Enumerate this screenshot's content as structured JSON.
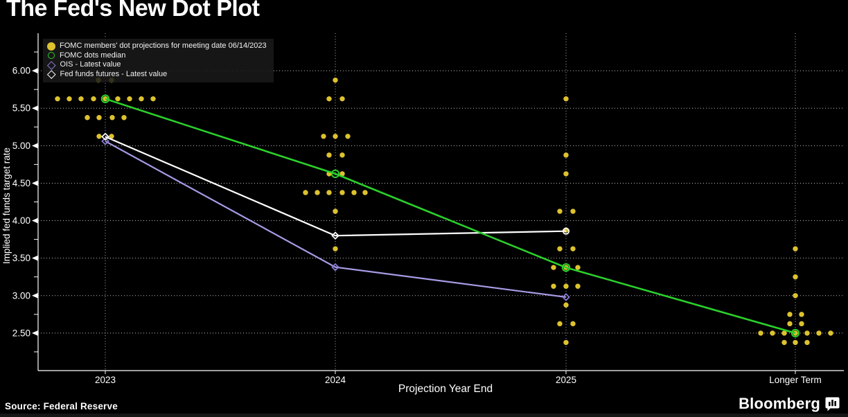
{
  "header": {
    "title": "The Fed's New Dot Plot"
  },
  "footer": {
    "source": "Source: Federal Reserve",
    "brand": "Bloomberg"
  },
  "colors": {
    "background": "#000000",
    "dot_yellow": "#ddc22f",
    "median_green": "#2bd02b",
    "ois_purple": "#a79ce6",
    "ois_diamond": "#8b7dd8",
    "futures_white": "#ffffff",
    "grid": "#e6e6e6",
    "axis": "#ffffff",
    "legend_bg": "rgba(26,26,26,0.86)"
  },
  "chart_data": {
    "type": "scatter",
    "title": "The Fed's New Dot Plot",
    "xlabel": "Projection Year End",
    "ylabel": "Implied fed funds target rate",
    "categories": [
      "2023",
      "2024",
      "2025",
      "Longer Term"
    ],
    "ylim": [
      2.0,
      6.5
    ],
    "yticks": [
      "2.50",
      "3.00",
      "3.50",
      "4.00",
      "4.50",
      "5.00",
      "5.50",
      "6.00"
    ],
    "grid": "dotted horizontal at labeled ticks, dotted vertical at each category",
    "legend_position": "top-left inside plot",
    "legend": [
      {
        "label": "FOMC members' dot projections for meeting date 06/14/2023",
        "marker": "dot",
        "color": "#ddc22f"
      },
      {
        "label": "FOMC dots median",
        "marker": "circle",
        "color": "#2bd02b"
      },
      {
        "label": "OIS - Latest value",
        "marker": "diamond",
        "color": "#8b7dd8"
      },
      {
        "label": "Fed funds futures - Latest value",
        "marker": "diamond",
        "color": "#ffffff"
      }
    ],
    "dot_projections": [
      {
        "category": "2023",
        "rows": [
          {
            "rate": 5.875,
            "offsets": [
              -10,
              9
            ]
          },
          {
            "rate": 5.625,
            "offsets": [
              -69,
              -52,
              -35,
              -17,
              0,
              18,
              35,
              52,
              69
            ]
          },
          {
            "rate": 5.375,
            "offsets": [
              -26,
              -9,
              10,
              27
            ]
          },
          {
            "rate": 5.125,
            "offsets": [
              -9,
              9
            ]
          }
        ]
      },
      {
        "category": "2024",
        "rows": [
          {
            "rate": 5.875,
            "offsets": [
              0
            ]
          },
          {
            "rate": 5.625,
            "offsets": [
              -9,
              10
            ]
          },
          {
            "rate": 5.125,
            "offsets": [
              -17,
              0,
              18
            ]
          },
          {
            "rate": 4.875,
            "offsets": [
              -9,
              10
            ]
          },
          {
            "rate": 4.625,
            "offsets": [
              -9,
              10
            ]
          },
          {
            "rate": 4.375,
            "offsets": [
              -43,
              -26,
              -9,
              10,
              27,
              43
            ]
          },
          {
            "rate": 4.125,
            "offsets": [
              0
            ]
          },
          {
            "rate": 3.625,
            "offsets": [
              0
            ]
          }
        ]
      },
      {
        "category": "2025",
        "rows": [
          {
            "rate": 5.625,
            "offsets": [
              0
            ]
          },
          {
            "rate": 4.875,
            "offsets": [
              0
            ]
          },
          {
            "rate": 4.625,
            "offsets": [
              0
            ]
          },
          {
            "rate": 4.125,
            "offsets": [
              -9,
              10
            ]
          },
          {
            "rate": 3.875,
            "offsets": [
              0
            ]
          },
          {
            "rate": 3.625,
            "offsets": [
              -9,
              10
            ]
          },
          {
            "rate": 3.375,
            "offsets": [
              -18,
              0,
              17
            ]
          },
          {
            "rate": 3.125,
            "offsets": [
              -18,
              0,
              17
            ]
          },
          {
            "rate": 2.875,
            "offsets": [
              0
            ]
          },
          {
            "rate": 2.625,
            "offsets": [
              -9,
              10
            ]
          },
          {
            "rate": 2.375,
            "offsets": [
              0
            ]
          }
        ]
      },
      {
        "category": "Longer Term",
        "rows": [
          {
            "rate": 3.625,
            "offsets": [
              0
            ]
          },
          {
            "rate": 3.25,
            "offsets": [
              0
            ]
          },
          {
            "rate": 3.0,
            "offsets": [
              0
            ]
          },
          {
            "rate": 2.75,
            "offsets": [
              -8,
              9
            ]
          },
          {
            "rate": 2.625,
            "offsets": [
              -8,
              9
            ]
          },
          {
            "rate": 2.5,
            "offsets": [
              -50,
              -33,
              -16,
              0,
              17,
              34,
              51
            ]
          },
          {
            "rate": 2.375,
            "offsets": [
              -16,
              0,
              17
            ]
          }
        ]
      }
    ],
    "series": [
      {
        "name": "OIS - Latest value",
        "color": "#a79ce6",
        "marker_color": "#8b7dd8",
        "marker": "diamond",
        "points": [
          {
            "category": "2023",
            "value": 5.06
          },
          {
            "category": "2024",
            "value": 3.38
          },
          {
            "category": "2025",
            "value": 2.98
          }
        ]
      },
      {
        "name": "Fed funds futures - Latest value",
        "color": "#ffffff",
        "marker_color": "#ffffff",
        "marker": "diamond",
        "points": [
          {
            "category": "2023",
            "value": 5.12
          },
          {
            "category": "2024",
            "value": 3.8
          },
          {
            "category": "2025",
            "value": 3.86
          }
        ]
      },
      {
        "name": "FOMC dots median",
        "color": "#2bd02b",
        "marker_color": "#2bd02b",
        "marker": "circle",
        "points": [
          {
            "category": "2023",
            "value": 5.625
          },
          {
            "category": "2024",
            "value": 4.625
          },
          {
            "category": "2025",
            "value": 3.375
          },
          {
            "category": "Longer Term",
            "value": 2.5
          }
        ]
      }
    ]
  }
}
